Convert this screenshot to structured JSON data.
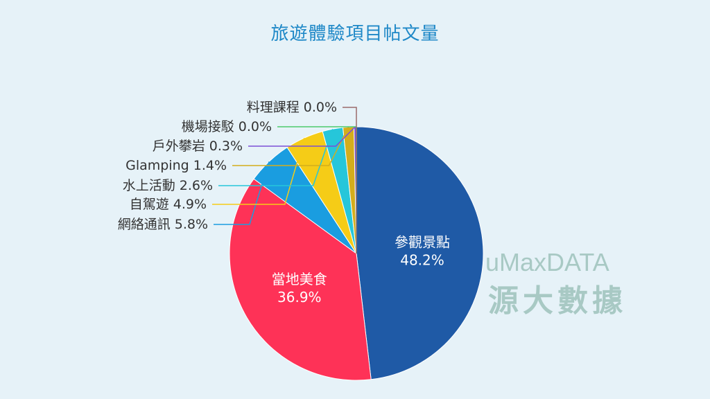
{
  "chart_data": {
    "type": "pie",
    "title": "旅遊體驗項目帖文量",
    "slices": [
      {
        "label": "參觀景點",
        "value": 48.2,
        "display": "48.2%",
        "color": "#1f5aa6",
        "placement": "inside"
      },
      {
        "label": "當地美食",
        "value": 36.9,
        "display": "36.9%",
        "color": "#fe3257",
        "placement": "inside"
      },
      {
        "label": "網絡通訊",
        "value": 5.8,
        "display": "5.8%",
        "color": "#1a9de0",
        "placement": "outside"
      },
      {
        "label": "自駕遊",
        "value": 4.9,
        "display": "4.9%",
        "color": "#f5cc17",
        "placement": "outside"
      },
      {
        "label": "水上活動",
        "value": 2.6,
        "display": "2.6%",
        "color": "#26c6da",
        "placement": "outside"
      },
      {
        "label": "Glamping",
        "value": 1.4,
        "display": "1.4%",
        "color": "#d4ad1c",
        "placement": "outside"
      },
      {
        "label": "戶外攀岩",
        "value": 0.3,
        "display": "0.3%",
        "color": "#7b4fd6",
        "placement": "outside"
      },
      {
        "label": "機場接駁",
        "value": 0.0,
        "display": "0.0%",
        "color": "#4bc96a",
        "placement": "outside"
      },
      {
        "label": "料理課程",
        "value": 0.0,
        "display": "0.0%",
        "color": "#9a6b6b",
        "placement": "outside"
      }
    ],
    "start_angle": "12 o'clock",
    "direction": "clockwise",
    "legend": "none"
  },
  "watermark": {
    "line1": "uMaxDATA",
    "line2": "源大數據"
  }
}
